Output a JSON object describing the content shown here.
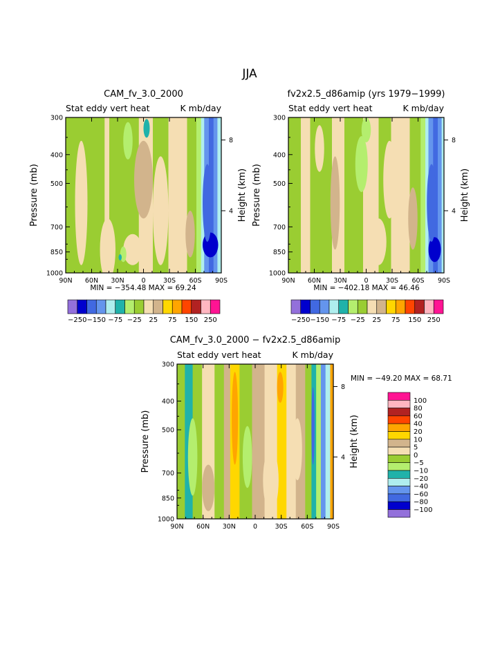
{
  "page_title": "JJA",
  "colors": {
    "purple": "#9370db",
    "dark_blue": "#0000cd",
    "blue": "#4169e1",
    "mid_blue": "#6495ed",
    "light_blue": "#afeeee",
    "teal": "#20b2aa",
    "light_green": "#b4ee6e",
    "olive_green": "#9acd32",
    "cream": "#f5deb3",
    "tan": "#d2b48c",
    "yellow": "#ffd700",
    "orange": "#ffa500",
    "orange_red": "#ff4500",
    "brown_red": "#b22222",
    "pink": "#ffb6c1",
    "magenta": "#ff1493"
  },
  "chart_data": [
    {
      "id": "panel1",
      "type": "heatmap",
      "title": "CAM_fv_3.0_2000",
      "variable": "Stat eddy vert heat",
      "units": "K mb/day",
      "xlabel": "",
      "ylabel": "Pressure (mb)",
      "ylabel_right": "Height (km)",
      "x_ticks": [
        "90N",
        "60N",
        "30N",
        "0",
        "30S",
        "60S",
        "90S"
      ],
      "y_ticks": [
        "300",
        "400",
        "500",
        "700",
        "850",
        "1000"
      ],
      "y_ticks_right": [
        "8",
        "4"
      ],
      "ylim": [
        1000,
        300
      ],
      "min_label": "MIN = −354.48",
      "max_label": "MAX =  69.24",
      "colorbar_labels": [
        "−250",
        "−150",
        "−75",
        "−25",
        "25",
        "75",
        "150",
        "250"
      ],
      "contour_levels": [
        -250,
        -200,
        -150,
        -100,
        -75,
        -50,
        -25,
        0,
        25,
        50,
        75,
        100,
        150,
        200,
        250
      ],
      "min": -354.48,
      "max": 69.24
    },
    {
      "id": "panel2",
      "type": "heatmap",
      "title": "fv2x2.5_d86amip (yrs 1979−1999)",
      "variable": "Stat eddy vert heat",
      "units": "K mb/day",
      "xlabel": "",
      "ylabel": "Pressure (mb)",
      "ylabel_right": "Height (km)",
      "x_ticks": [
        "90N",
        "60N",
        "30N",
        "0",
        "30S",
        "60S",
        "90S"
      ],
      "y_ticks": [
        "300",
        "400",
        "500",
        "700",
        "850",
        "1000"
      ],
      "y_ticks_right": [
        "8",
        "4"
      ],
      "ylim": [
        1000,
        300
      ],
      "min_label": "MIN = −402.18",
      "max_label": "MAX =  46.46",
      "colorbar_labels": [
        "−250",
        "−150",
        "−75",
        "−25",
        "25",
        "75",
        "150",
        "250"
      ],
      "contour_levels": [
        -250,
        -200,
        -150,
        -100,
        -75,
        -50,
        -25,
        0,
        25,
        50,
        75,
        100,
        150,
        200,
        250
      ],
      "min": -402.18,
      "max": 46.46
    },
    {
      "id": "panel3",
      "type": "heatmap",
      "title": "CAM_fv_3.0_2000 − fv2x2.5_d86amip",
      "variable": "Stat eddy vert heat",
      "units": "K mb/day",
      "xlabel": "",
      "ylabel": "Pressure (mb)",
      "ylabel_right": "Height (km)",
      "x_ticks": [
        "90N",
        "60N",
        "30N",
        "0",
        "30S",
        "60S",
        "90S"
      ],
      "y_ticks": [
        "300",
        "400",
        "500",
        "700",
        "850",
        "1000"
      ],
      "y_ticks_right": [
        "8",
        "4"
      ],
      "ylim": [
        1000,
        300
      ],
      "minmax_label": "MIN = −49.20   MAX =  68.71",
      "colorbar_labels": [
        "100",
        "80",
        "60",
        "40",
        "20",
        "10",
        "5",
        "0",
        "−5",
        "−10",
        "−20",
        "−40",
        "−60",
        "−80",
        "−100"
      ],
      "contour_levels": [
        -100,
        -80,
        -60,
        -40,
        -20,
        -10,
        -5,
        0,
        5,
        10,
        20,
        40,
        60,
        80,
        100
      ],
      "min": -49.2,
      "max": 68.71
    }
  ]
}
